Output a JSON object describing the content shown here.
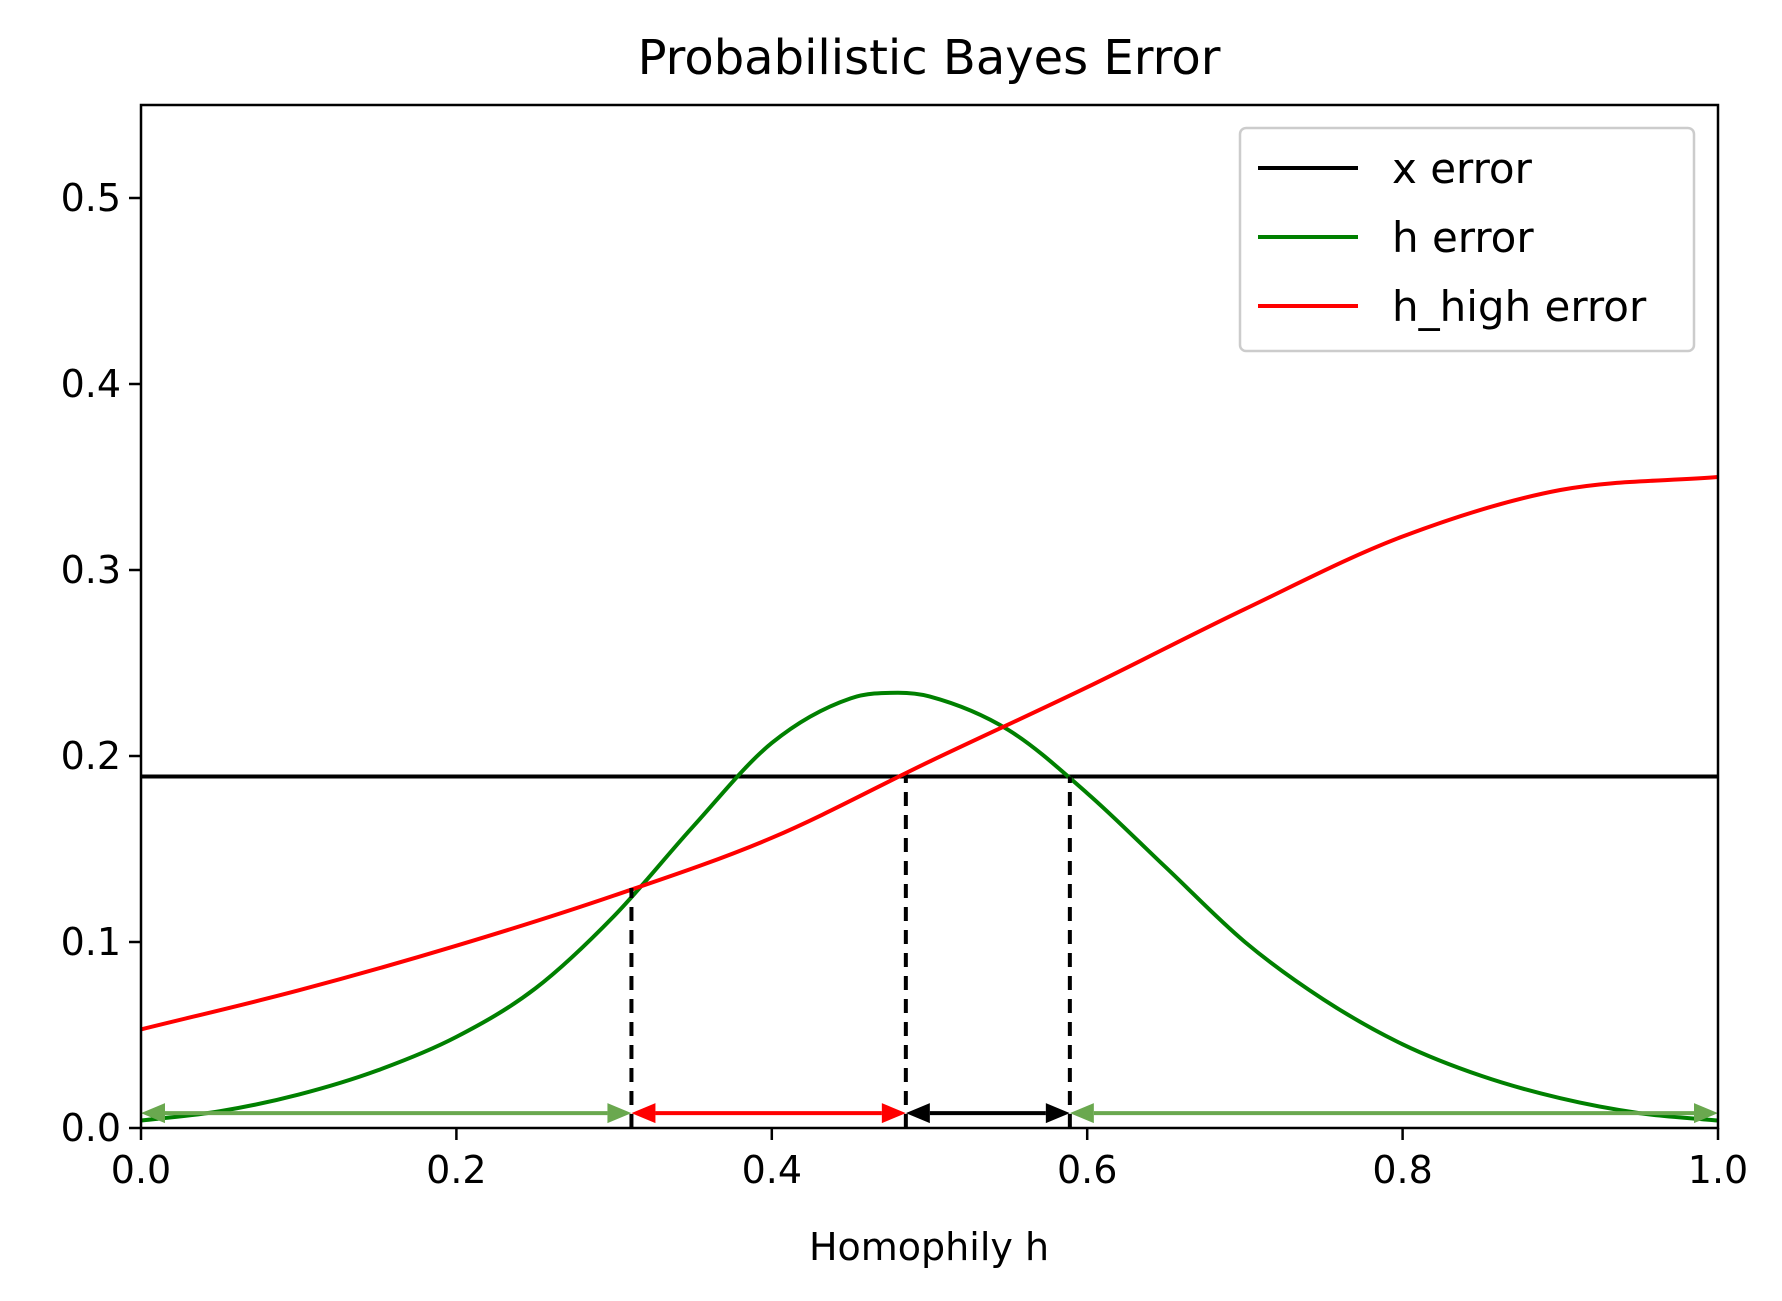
{
  "chart_data": {
    "type": "line",
    "title": "Probabilistic Bayes Error",
    "xlabel": "Homophily h",
    "ylabel": "",
    "xlim": [
      0.0,
      1.0
    ],
    "ylim": [
      0.0,
      0.55
    ],
    "x_ticks": [
      "0.0",
      "0.2",
      "0.4",
      "0.6",
      "0.8",
      "1.0"
    ],
    "y_ticks": [
      "0.0",
      "0.1",
      "0.2",
      "0.3",
      "0.4",
      "0.5"
    ],
    "x_tick_values": [
      0.0,
      0.2,
      0.4,
      0.6,
      0.8,
      1.0
    ],
    "y_tick_values": [
      0.0,
      0.1,
      0.2,
      0.3,
      0.4,
      0.5
    ],
    "grid": false,
    "legend_position": "top-right",
    "series": [
      {
        "name": "x error",
        "color": "#000000",
        "x": [
          0.0,
          1.0
        ],
        "y": [
          0.189,
          0.189
        ]
      },
      {
        "name": "h error",
        "color": "#008000",
        "x": [
          0.0,
          0.05,
          0.1,
          0.15,
          0.2,
          0.25,
          0.3,
          0.35,
          0.4,
          0.45,
          0.48,
          0.5,
          0.55,
          0.6,
          0.65,
          0.7,
          0.75,
          0.8,
          0.85,
          0.9,
          0.95,
          1.0
        ],
        "y": [
          0.004,
          0.009,
          0.018,
          0.031,
          0.049,
          0.075,
          0.114,
          0.162,
          0.207,
          0.231,
          0.234,
          0.232,
          0.214,
          0.18,
          0.14,
          0.1,
          0.069,
          0.045,
          0.028,
          0.016,
          0.008,
          0.004
        ]
      },
      {
        "name": "h_high error",
        "color": "#ff0000",
        "x": [
          0.0,
          0.1,
          0.2,
          0.3,
          0.4,
          0.5,
          0.6,
          0.7,
          0.8,
          0.9,
          1.0
        ],
        "y": [
          0.053,
          0.074,
          0.098,
          0.125,
          0.156,
          0.197,
          0.237,
          0.279,
          0.318,
          0.343,
          0.35
        ]
      }
    ],
    "vlines": [
      {
        "x": 0.311,
        "y0": 0.0,
        "y1": 0.129,
        "color": "#000000",
        "style": "dashed"
      },
      {
        "x": 0.485,
        "y0": 0.0,
        "y1": 0.189,
        "color": "#000000",
        "style": "dashed"
      },
      {
        "x": 0.589,
        "y0": 0.0,
        "y1": 0.189,
        "color": "#000000",
        "style": "dashed"
      }
    ],
    "range_arrows": [
      {
        "x0": 0.0,
        "x1": 0.311,
        "y": 0.008,
        "color": "#6aa84f"
      },
      {
        "x0": 0.311,
        "x1": 0.485,
        "y": 0.008,
        "color": "#ff0000"
      },
      {
        "x0": 0.485,
        "x1": 0.589,
        "y": 0.008,
        "color": "#000000"
      },
      {
        "x0": 0.589,
        "x1": 1.0,
        "y": 0.008,
        "color": "#6aa84f"
      }
    ]
  }
}
